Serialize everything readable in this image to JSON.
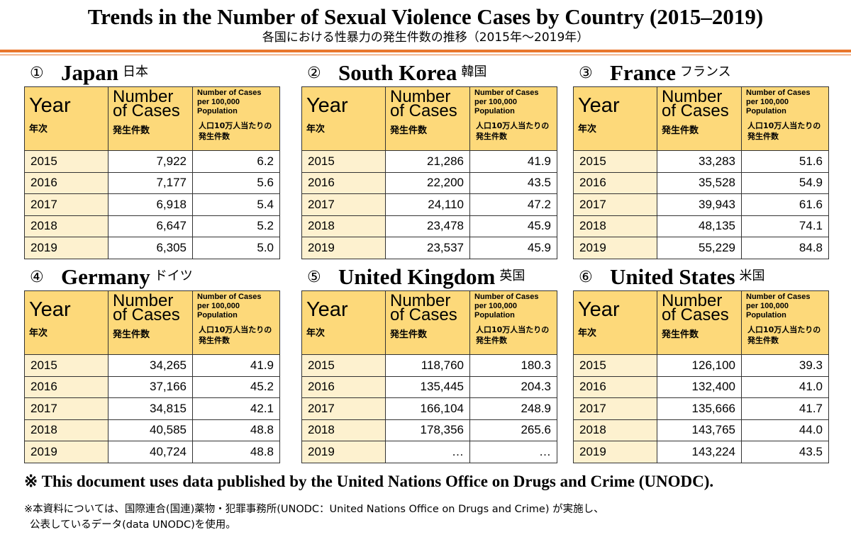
{
  "title": "Trends in the Number of Sexual Violence Cases by Country (2015–2019)",
  "subtitle": "各国における性暴力の発生件数の推移（2015年～2019年）",
  "header": {
    "year_en": "Year",
    "year_jp": "年次",
    "cases_en": "Number of Cases",
    "cases_jp": "発生件数",
    "rate_en": "Number of Cases per 100,000 Population",
    "rate_jp": "人口10万人当たりの発生件数"
  },
  "chart_data": {
    "type": "table",
    "columns": [
      "Year",
      "Number of Cases",
      "Number of Cases per 100,000 Population"
    ],
    "tables": [
      {
        "marker": "①",
        "country": "Japan",
        "country_jp": "日本",
        "rows": [
          [
            "2015",
            "7,922",
            "6.2"
          ],
          [
            "2016",
            "7,177",
            "5.6"
          ],
          [
            "2017",
            "6,918",
            "5.4"
          ],
          [
            "2018",
            "6,647",
            "5.2"
          ],
          [
            "2019",
            "6,305",
            "5.0"
          ]
        ]
      },
      {
        "marker": "②",
        "country": "South Korea",
        "country_jp": "韓国",
        "rows": [
          [
            "2015",
            "21,286",
            "41.9"
          ],
          [
            "2016",
            "22,200",
            "43.5"
          ],
          [
            "2017",
            "24,110",
            "47.2"
          ],
          [
            "2018",
            "23,478",
            "45.9"
          ],
          [
            "2019",
            "23,537",
            "45.9"
          ]
        ]
      },
      {
        "marker": "③",
        "country": "France",
        "country_jp": "フランス",
        "rows": [
          [
            "2015",
            "33,283",
            "51.6"
          ],
          [
            "2016",
            "35,528",
            "54.9"
          ],
          [
            "2017",
            "39,943",
            "61.6"
          ],
          [
            "2018",
            "48,135",
            "74.1"
          ],
          [
            "2019",
            "55,229",
            "84.8"
          ]
        ]
      },
      {
        "marker": "④",
        "country": "Germany",
        "country_jp": "ドイツ",
        "rows": [
          [
            "2015",
            "34,265",
            "41.9"
          ],
          [
            "2016",
            "37,166",
            "45.2"
          ],
          [
            "2017",
            "34,815",
            "42.1"
          ],
          [
            "2018",
            "40,585",
            "48.8"
          ],
          [
            "2019",
            "40,724",
            "48.8"
          ]
        ]
      },
      {
        "marker": "⑤",
        "country": "United Kingdom",
        "country_jp": "英国",
        "rows": [
          [
            "2015",
            "118,760",
            "180.3"
          ],
          [
            "2016",
            "135,445",
            "204.3"
          ],
          [
            "2017",
            "166,104",
            "248.9"
          ],
          [
            "2018",
            "178,356",
            "265.6"
          ],
          [
            "2019",
            "…",
            "…"
          ]
        ]
      },
      {
        "marker": "⑥",
        "country": "United States",
        "country_jp": "米国",
        "rows": [
          [
            "2015",
            "126,100",
            "39.3"
          ],
          [
            "2016",
            "132,400",
            "41.0"
          ],
          [
            "2017",
            "135,666",
            "41.7"
          ],
          [
            "2018",
            "143,765",
            "44.0"
          ],
          [
            "2019",
            "143,224",
            "43.5"
          ]
        ]
      }
    ]
  },
  "notes": {
    "en": "※ This document uses data published by the United Nations Office on Drugs and Crime (UNODC).",
    "jp_line1": "※本資料については、国際連合(国連)薬物・犯罪事務所(UNODC：United Nations Office on Drugs and Crime) が実施し、",
    "jp_line2": "公表しているデータ(data UNODC)を使用。"
  }
}
